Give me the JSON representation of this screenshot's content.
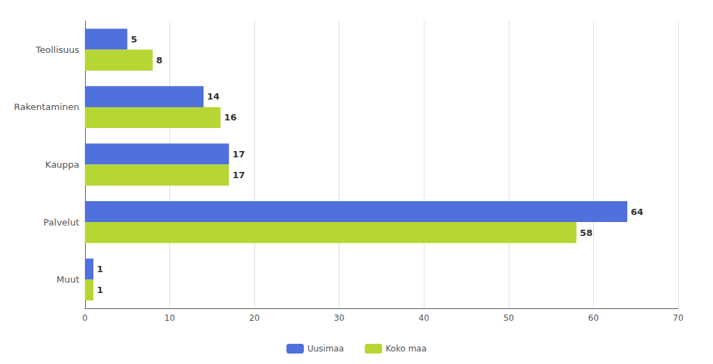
{
  "chart_data": {
    "type": "bar",
    "orientation": "horizontal",
    "categories": [
      "Teollisuus",
      "Rakentaminen",
      "Kauppa",
      "Palvelut",
      "Muut"
    ],
    "series": [
      {
        "name": "Uusimaa",
        "values": [
          5,
          14,
          17,
          64,
          1
        ]
      },
      {
        "name": "Koko maa",
        "values": [
          8,
          16,
          17,
          58,
          1
        ]
      }
    ],
    "xlim": [
      0,
      70
    ],
    "xticks": [
      0,
      10,
      20,
      30,
      40,
      50,
      60,
      70
    ],
    "grid": true,
    "data_labels": true,
    "legend": "bottom"
  }
}
